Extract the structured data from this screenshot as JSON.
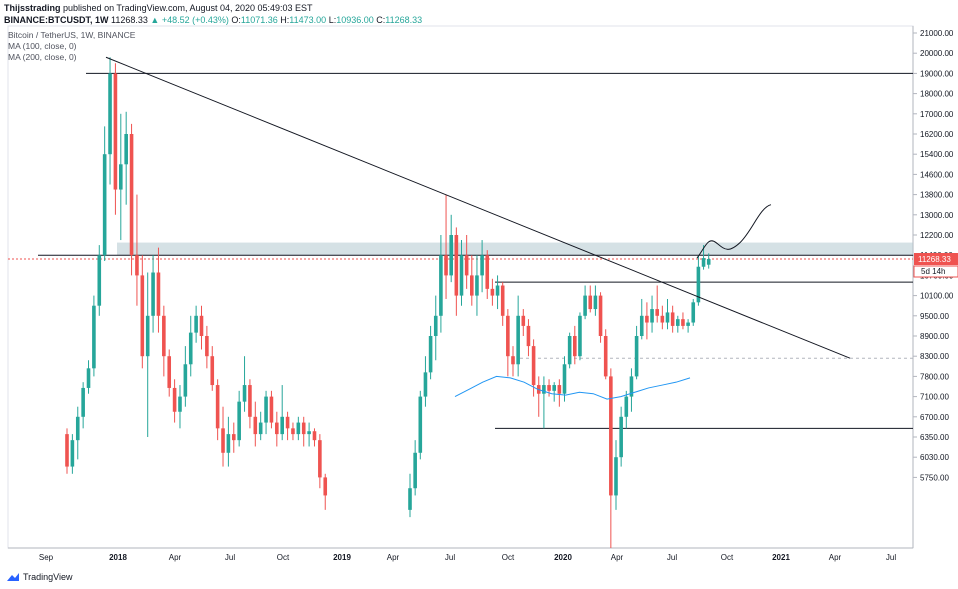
{
  "header": {
    "author": "Thijsstrading",
    "published": "published on TradingView.com, August 04, 2020 05:49:03 EST",
    "symbol": "BINANCE:BTCUSDT, 1W",
    "last": "11268.33",
    "change": "▲ +48.52 (+0.43%)",
    "o_label": "O:",
    "o": "11071.36",
    "h_label": "H:",
    "h": "11473.00",
    "l_label": "L:",
    "l": "10936.00",
    "c_label": "C:",
    "c": "11268.33"
  },
  "legend": {
    "title": "Bitcoin / TetherUS, 1W, BINANCE",
    "ma100": "MA (100, close, 0)",
    "ma200": "MA (200, close, 0)"
  },
  "price_tag": {
    "value": "11268.33",
    "countdown": "5d 14h",
    "color": "#ef5350"
  },
  "footer": {
    "brand": "TradingView"
  },
  "colors": {
    "up": "#26a69a",
    "down": "#ef5350",
    "ma": "#2196f3",
    "zone": "#b2c8d0"
  },
  "chart_data": {
    "type": "candlestick",
    "interval": "1W",
    "y_axis_labels": [
      "21000.00",
      "20000.00",
      "19000.00",
      "18000.00",
      "17000.00",
      "16200.00",
      "15400.00",
      "14600.00",
      "13800.00",
      "13000.00",
      "12200.00",
      "11400.00",
      "10700.00",
      "10100.00",
      "9500.00",
      "8900.00",
      "8300.00",
      "7800.00",
      "7100.00",
      "6700.00",
      "6350.00",
      "6030.00",
      "5750.00"
    ],
    "x_axis_labels": [
      "Sep",
      "2018",
      "Apr",
      "Jul",
      "Oct",
      "2019",
      "Apr",
      "Jul",
      "Oct",
      "2020",
      "Apr",
      "Jul",
      "Oct",
      "2021",
      "Apr",
      "Jul"
    ],
    "series": [
      {
        "name": "MA (200, close, 0)",
        "values": [
          7100,
          7350,
          7600,
          7800,
          7750,
          7600,
          7350,
          7200,
          7150,
          7250,
          7200,
          7050,
          7100,
          7250,
          7400,
          7500,
          7600,
          7750
        ]
      }
    ],
    "candles": [
      {
        "o": 6400,
        "c": 5900,
        "h": 6500,
        "l": 5800
      },
      {
        "o": 5900,
        "c": 6300,
        "h": 6400,
        "l": 5800
      },
      {
        "o": 6300,
        "c": 6700,
        "h": 6900,
        "l": 6000
      },
      {
        "o": 6700,
        "c": 7400,
        "h": 7600,
        "l": 6500
      },
      {
        "o": 7400,
        "c": 8000,
        "h": 8200,
        "l": 7200
      },
      {
        "o": 8000,
        "c": 9800,
        "h": 10100,
        "l": 7800
      },
      {
        "o": 9800,
        "c": 11400,
        "h": 11800,
        "l": 9500
      },
      {
        "o": 11400,
        "c": 15400,
        "h": 16500,
        "l": 11200
      },
      {
        "o": 15400,
        "c": 19000,
        "h": 19800,
        "l": 14200
      },
      {
        "o": 19000,
        "c": 14000,
        "h": 19500,
        "l": 13000
      },
      {
        "o": 14000,
        "c": 15000,
        "h": 17000,
        "l": 12000
      },
      {
        "o": 15000,
        "c": 16200,
        "h": 17100,
        "l": 13400
      },
      {
        "o": 16200,
        "c": 11400,
        "h": 16600,
        "l": 10700
      },
      {
        "o": 11400,
        "c": 10700,
        "h": 13800,
        "l": 9800
      },
      {
        "o": 10700,
        "c": 8300,
        "h": 11400,
        "l": 8000
      },
      {
        "o": 8300,
        "c": 9500,
        "h": 10800,
        "l": 6350
      },
      {
        "o": 9500,
        "c": 10800,
        "h": 11400,
        "l": 9000
      },
      {
        "o": 10800,
        "c": 9500,
        "h": 11700,
        "l": 9000
      },
      {
        "o": 9500,
        "c": 8300,
        "h": 9800,
        "l": 7800
      },
      {
        "o": 8300,
        "c": 7400,
        "h": 8500,
        "l": 7100
      },
      {
        "o": 7400,
        "c": 6800,
        "h": 7700,
        "l": 6600
      },
      {
        "o": 6800,
        "c": 7100,
        "h": 7500,
        "l": 6500
      },
      {
        "o": 7100,
        "c": 8100,
        "h": 8600,
        "l": 6900
      },
      {
        "o": 8100,
        "c": 9000,
        "h": 9500,
        "l": 7800
      },
      {
        "o": 9000,
        "c": 9500,
        "h": 9800,
        "l": 8700
      },
      {
        "o": 9500,
        "c": 8900,
        "h": 9800,
        "l": 8500
      },
      {
        "o": 8900,
        "c": 8300,
        "h": 9200,
        "l": 8000
      },
      {
        "o": 8300,
        "c": 7500,
        "h": 8600,
        "l": 7300
      },
      {
        "o": 7500,
        "c": 6500,
        "h": 7700,
        "l": 6300
      },
      {
        "o": 6500,
        "c": 6100,
        "h": 6900,
        "l": 5900
      },
      {
        "o": 6100,
        "c": 6400,
        "h": 6700,
        "l": 5900
      },
      {
        "o": 6400,
        "c": 6300,
        "h": 6600,
        "l": 6100
      },
      {
        "o": 6300,
        "c": 7000,
        "h": 7300,
        "l": 6200
      },
      {
        "o": 7000,
        "c": 7500,
        "h": 8300,
        "l": 6800
      },
      {
        "o": 7500,
        "c": 6700,
        "h": 7700,
        "l": 6500
      },
      {
        "o": 6700,
        "c": 6400,
        "h": 7000,
        "l": 6200
      },
      {
        "o": 6400,
        "c": 6600,
        "h": 6800,
        "l": 6300
      },
      {
        "o": 6600,
        "c": 7100,
        "h": 7300,
        "l": 6400
      },
      {
        "o": 7100,
        "c": 6600,
        "h": 7300,
        "l": 6500
      },
      {
        "o": 6600,
        "c": 6400,
        "h": 6800,
        "l": 6200
      },
      {
        "o": 6400,
        "c": 6700,
        "h": 7500,
        "l": 6300
      },
      {
        "o": 6700,
        "c": 6500,
        "h": 6800,
        "l": 6300
      },
      {
        "o": 6500,
        "c": 6400,
        "h": 6600,
        "l": 6300
      },
      {
        "o": 6400,
        "c": 6600,
        "h": 6700,
        "l": 6300
      },
      {
        "o": 6600,
        "c": 6400,
        "h": 6700,
        "l": 6200
      },
      {
        "o": 6400,
        "c": 6450,
        "h": 6600,
        "l": 6200
      },
      {
        "o": 6450,
        "c": 6300,
        "h": 6500,
        "l": 6200
      },
      {
        "o": 6300,
        "c": 5750,
        "h": 6400,
        "l": 5600
      },
      {
        "o": 5750,
        "c": 5500,
        "h": 5800,
        "l": 5300
      }
    ],
    "candles_2019": [
      {
        "o": 5300,
        "c": 5600,
        "h": 5800,
        "l": 5200
      },
      {
        "o": 5600,
        "c": 6100,
        "h": 6300,
        "l": 5500
      },
      {
        "o": 6100,
        "c": 7100,
        "h": 7300,
        "l": 6000
      },
      {
        "o": 7100,
        "c": 7900,
        "h": 8300,
        "l": 6900
      },
      {
        "o": 7900,
        "c": 8900,
        "h": 9200,
        "l": 7700
      },
      {
        "o": 8900,
        "c": 9500,
        "h": 10100,
        "l": 8200
      },
      {
        "o": 9500,
        "c": 11400,
        "h": 12200,
        "l": 9000
      },
      {
        "o": 11400,
        "c": 10700,
        "h": 13800,
        "l": 10000
      },
      {
        "o": 10700,
        "c": 12200,
        "h": 13000,
        "l": 10500
      },
      {
        "o": 12200,
        "c": 10100,
        "h": 12500,
        "l": 9500
      },
      {
        "o": 10100,
        "c": 11400,
        "h": 12000,
        "l": 9800
      },
      {
        "o": 11400,
        "c": 10700,
        "h": 12200,
        "l": 10300
      },
      {
        "o": 10700,
        "c": 10100,
        "h": 11400,
        "l": 9800
      },
      {
        "o": 10100,
        "c": 10700,
        "h": 11400,
        "l": 9500
      },
      {
        "o": 10700,
        "c": 11400,
        "h": 12000,
        "l": 10200
      },
      {
        "o": 11400,
        "c": 10300,
        "h": 11600,
        "l": 10000
      },
      {
        "o": 10300,
        "c": 10100,
        "h": 10600,
        "l": 9800
      },
      {
        "o": 10100,
        "c": 10400,
        "h": 10700,
        "l": 9700
      },
      {
        "o": 10400,
        "c": 9500,
        "h": 10500,
        "l": 9200
      },
      {
        "o": 9500,
        "c": 8300,
        "h": 9700,
        "l": 7800
      },
      {
        "o": 8300,
        "c": 8100,
        "h": 8600,
        "l": 7800
      },
      {
        "o": 8100,
        "c": 9500,
        "h": 10100,
        "l": 7800
      },
      {
        "o": 9500,
        "c": 9200,
        "h": 9700,
        "l": 8900
      },
      {
        "o": 9200,
        "c": 8600,
        "h": 9400,
        "l": 8300
      },
      {
        "o": 8600,
        "c": 7500,
        "h": 8800,
        "l": 7100
      },
      {
        "o": 7500,
        "c": 7200,
        "h": 7800,
        "l": 6700
      },
      {
        "o": 7200,
        "c": 7500,
        "h": 7800,
        "l": 6500
      },
      {
        "o": 7500,
        "c": 7300,
        "h": 7700,
        "l": 7100
      },
      {
        "o": 7300,
        "c": 7500,
        "h": 7600,
        "l": 7000
      },
      {
        "o": 7500,
        "c": 7200,
        "h": 7700,
        "l": 6900
      },
      {
        "o": 7200,
        "c": 8100,
        "h": 8300,
        "l": 7000
      },
      {
        "o": 8100,
        "c": 8900,
        "h": 9000,
        "l": 8000
      },
      {
        "o": 8900,
        "c": 8300,
        "h": 9200,
        "l": 8100
      },
      {
        "o": 8300,
        "c": 9500,
        "h": 9600,
        "l": 8200
      },
      {
        "o": 9500,
        "c": 10100,
        "h": 10400,
        "l": 9400
      },
      {
        "o": 10100,
        "c": 9700,
        "h": 10400,
        "l": 9600
      },
      {
        "o": 9700,
        "c": 10100,
        "h": 10400,
        "l": 9500
      },
      {
        "o": 10100,
        "c": 8900,
        "h": 10200,
        "l": 8700
      },
      {
        "o": 8900,
        "c": 7800,
        "h": 9100,
        "l": 7700
      },
      {
        "o": 7800,
        "c": 5500,
        "h": 8000,
        "l": 3800
      },
      {
        "o": 5500,
        "c": 6030,
        "h": 6300,
        "l": 5300
      },
      {
        "o": 6030,
        "c": 6700,
        "h": 6900,
        "l": 5900
      },
      {
        "o": 6700,
        "c": 7100,
        "h": 7300,
        "l": 6500
      },
      {
        "o": 7100,
        "c": 7800,
        "h": 8000,
        "l": 6800
      },
      {
        "o": 7800,
        "c": 8900,
        "h": 9200,
        "l": 7700
      },
      {
        "o": 8900,
        "c": 9500,
        "h": 10000,
        "l": 8800
      },
      {
        "o": 9500,
        "c": 9300,
        "h": 9900,
        "l": 8800
      },
      {
        "o": 9300,
        "c": 9700,
        "h": 10100,
        "l": 9000
      },
      {
        "o": 9700,
        "c": 9500,
        "h": 10400,
        "l": 9300
      },
      {
        "o": 9500,
        "c": 9300,
        "h": 9800,
        "l": 9100
      },
      {
        "o": 9300,
        "c": 9600,
        "h": 10000,
        "l": 9100
      },
      {
        "o": 9600,
        "c": 9200,
        "h": 9800,
        "l": 9000
      },
      {
        "o": 9200,
        "c": 9400,
        "h": 9500,
        "l": 9000
      },
      {
        "o": 9400,
        "c": 9200,
        "h": 9600,
        "l": 9100
      },
      {
        "o": 9200,
        "c": 9300,
        "h": 9400,
        "l": 9000
      },
      {
        "o": 9300,
        "c": 9900,
        "h": 10000,
        "l": 9200
      },
      {
        "o": 9900,
        "c": 11000,
        "h": 11400,
        "l": 9800
      },
      {
        "o": 11000,
        "c": 11300,
        "h": 11800,
        "l": 10900
      },
      {
        "o": 11070,
        "c": 11268,
        "h": 11473,
        "l": 10936
      }
    ],
    "lines": [
      {
        "name": "descending trendline",
        "from": [
          19800,
          "2017-12"
        ],
        "to": [
          8250,
          "2021-04"
        ]
      },
      {
        "name": "horizontal-19000",
        "value": 19000
      },
      {
        "name": "horizontal-11400",
        "value": 11400
      },
      {
        "name": "horizontal-10500",
        "value": 10500
      },
      {
        "name": "horizontal-6500",
        "value": 6500
      }
    ],
    "zone": {
      "from": 11400,
      "to": 11900
    }
  }
}
